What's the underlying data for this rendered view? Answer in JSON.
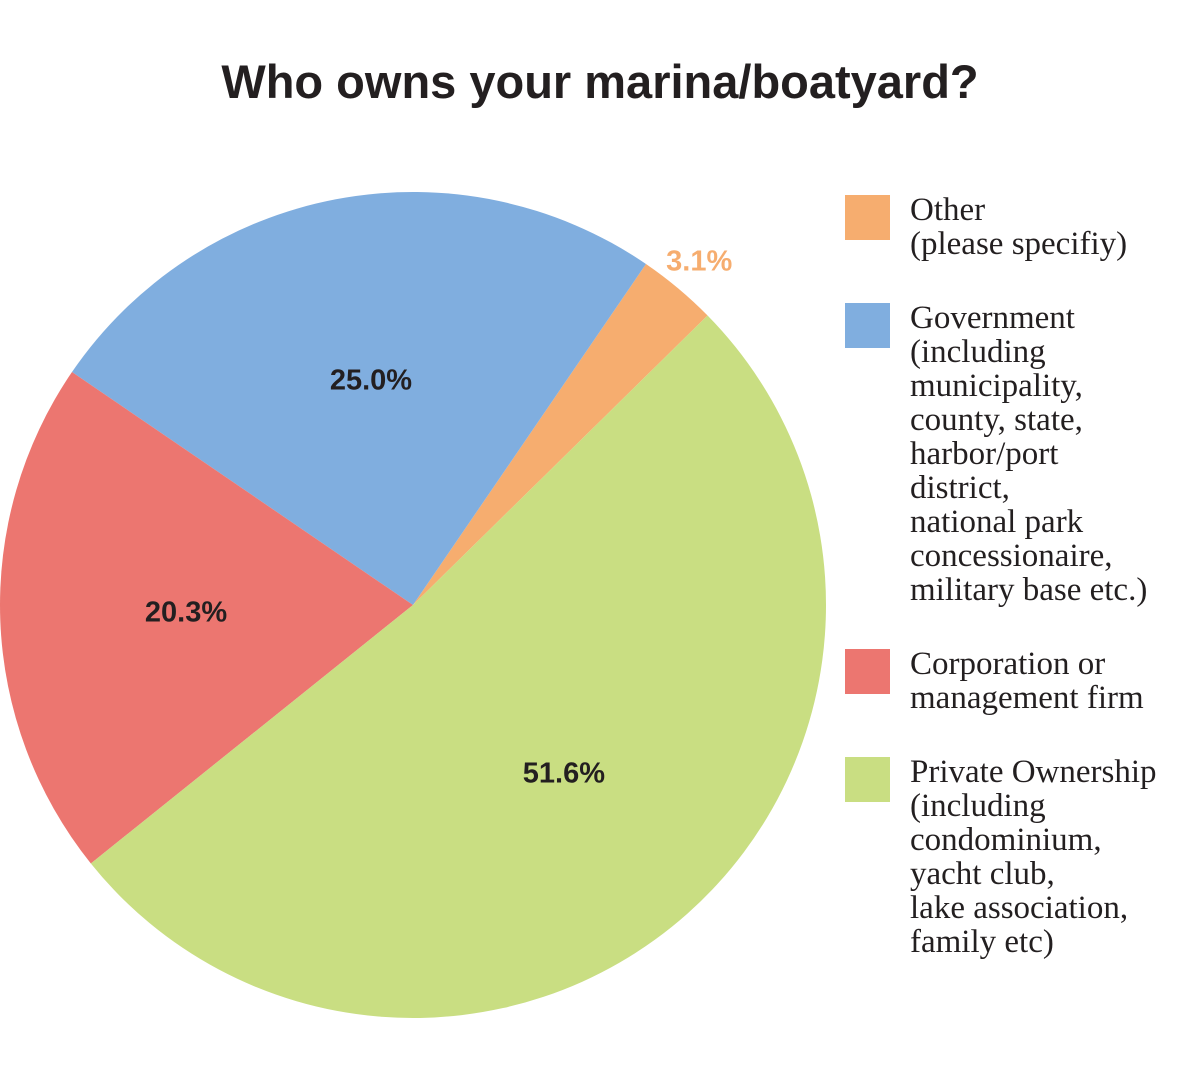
{
  "chart_data": {
    "type": "pie",
    "title": "Who owns your marina/boatyard?",
    "series": [
      {
        "name": "Other\n(please specifiy)",
        "color": "#f6ad6f",
        "values": [
          3.1
        ],
        "value_labels": [
          "3.1%"
        ]
      },
      {
        "name": "Government\n(including\nmunicipality,\ncounty, state,\nharbor/port\ndistrict,\nnational park\nconcessionaire,\nmilitary base etc.)",
        "color": "#80aedf",
        "values": [
          25.0
        ],
        "value_labels": [
          "25.0%"
        ]
      },
      {
        "name": "Corporation or\nmanagement firm",
        "color": "#ec7670",
        "values": [
          20.3
        ],
        "value_labels": [
          "20.3%"
        ]
      },
      {
        "name": "Private Ownership\n(including\ncondominium,\nyacht club,\nlake association,\nfamily etc)",
        "color": "#c9de82",
        "values": [
          51.6
        ],
        "value_labels": [
          "51.6%"
        ]
      }
    ]
  }
}
